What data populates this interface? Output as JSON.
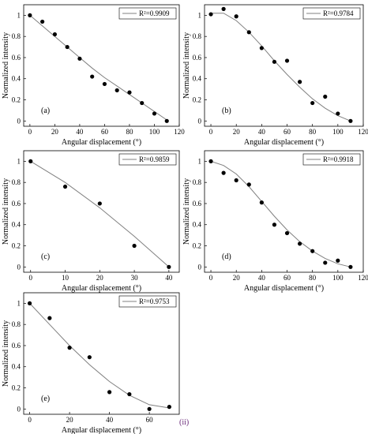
{
  "figure_note": "(ii)",
  "chart_data": [
    {
      "type": "scatter",
      "panel_label": "(a)",
      "xlabel": "Angular displacement (°)",
      "ylabel": "Normalized intensity",
      "xlim": [
        -5,
        120
      ],
      "ylim": [
        -0.05,
        1.1
      ],
      "xticks": [
        0,
        20,
        40,
        60,
        80,
        100,
        120
      ],
      "yticks": [
        0,
        0.2,
        0.4,
        0.6,
        0.8,
        1
      ],
      "legend": "R²=0.9909",
      "legend_position": "top-right",
      "series": [
        {
          "x": [
            0,
            10,
            20,
            30,
            40,
            50,
            60,
            70,
            80,
            90,
            100,
            110
          ],
          "y": [
            1.0,
            0.94,
            0.82,
            0.7,
            0.59,
            0.42,
            0.35,
            0.29,
            0.27,
            0.17,
            0.07,
            0.0
          ]
        }
      ],
      "fit": {
        "x": [
          0,
          10,
          20,
          30,
          40,
          50,
          60,
          70,
          80,
          90,
          100,
          110
        ],
        "y": [
          1.0,
          0.9,
          0.8,
          0.7,
          0.6,
          0.5,
          0.41,
          0.33,
          0.25,
          0.17,
          0.09,
          0.01
        ]
      }
    },
    {
      "type": "scatter",
      "panel_label": "(b)",
      "xlabel": "Angular displacement (°)",
      "ylabel": "Normalized intensity",
      "xlim": [
        -5,
        120
      ],
      "ylim": [
        -0.05,
        1.1
      ],
      "xticks": [
        0,
        20,
        40,
        60,
        80,
        100,
        120
      ],
      "yticks": [
        0,
        0.2,
        0.4,
        0.6,
        0.8,
        1
      ],
      "legend": "R²=0.9784",
      "legend_position": "top-right",
      "series": [
        {
          "x": [
            0,
            10,
            20,
            30,
            40,
            50,
            60,
            70,
            80,
            90,
            100,
            110
          ],
          "y": [
            1.01,
            1.06,
            0.99,
            0.84,
            0.69,
            0.56,
            0.57,
            0.37,
            0.17,
            0.23,
            0.07,
            0.0
          ]
        }
      ],
      "fit": {
        "x": [
          0,
          10,
          20,
          30,
          40,
          50,
          60,
          70,
          80,
          90,
          100,
          110
        ],
        "y": [
          1.02,
          1.02,
          0.95,
          0.84,
          0.71,
          0.57,
          0.44,
          0.32,
          0.21,
          0.12,
          0.05,
          0.0
        ]
      }
    },
    {
      "type": "scatter",
      "panel_label": "(c)",
      "xlabel": "Angular displacement (°)",
      "ylabel": "Normalized intensity",
      "xlim": [
        -2,
        43
      ],
      "ylim": [
        -0.05,
        1.1
      ],
      "xticks": [
        0,
        10,
        20,
        30,
        40
      ],
      "yticks": [
        0,
        0.2,
        0.4,
        0.6,
        0.8,
        1
      ],
      "legend": "R²=0.9859",
      "legend_position": "top-right",
      "series": [
        {
          "x": [
            0,
            10,
            20,
            30,
            40
          ],
          "y": [
            1.0,
            0.76,
            0.6,
            0.2,
            0.0
          ]
        }
      ],
      "fit": {
        "x": [
          0,
          10,
          20,
          30,
          40
        ],
        "y": [
          1.0,
          0.8,
          0.56,
          0.29,
          0.0
        ]
      }
    },
    {
      "type": "scatter",
      "panel_label": "(d)",
      "xlabel": "Angular displacement (°)",
      "ylabel": "Normalized intensity",
      "xlim": [
        -5,
        120
      ],
      "ylim": [
        -0.05,
        1.1
      ],
      "xticks": [
        0,
        20,
        40,
        60,
        80,
        100,
        120
      ],
      "yticks": [
        0,
        0.2,
        0.4,
        0.6,
        0.8,
        1
      ],
      "legend": "R²=0.9918",
      "legend_position": "top-right",
      "series": [
        {
          "x": [
            0,
            10,
            20,
            30,
            40,
            50,
            60,
            70,
            80,
            90,
            100,
            110
          ],
          "y": [
            1.0,
            0.89,
            0.82,
            0.78,
            0.61,
            0.4,
            0.32,
            0.22,
            0.15,
            0.04,
            0.06,
            0.0
          ]
        }
      ],
      "fit": {
        "x": [
          0,
          10,
          20,
          30,
          40,
          50,
          60,
          70,
          80,
          90,
          100,
          110
        ],
        "y": [
          1.0,
          0.96,
          0.88,
          0.76,
          0.62,
          0.48,
          0.35,
          0.24,
          0.15,
          0.08,
          0.03,
          0.0
        ]
      }
    },
    {
      "type": "scatter",
      "panel_label": "(e)",
      "xlabel": "Angular displacement (°)",
      "ylabel": "Normalized intensity",
      "xlim": [
        -3,
        75
      ],
      "ylim": [
        -0.05,
        1.1
      ],
      "xticks": [
        0,
        20,
        40,
        60
      ],
      "yticks": [
        0,
        0.2,
        0.4,
        0.6,
        0.8,
        1
      ],
      "legend": "R²=0.9753",
      "legend_position": "top-right",
      "series": [
        {
          "x": [
            0,
            10,
            20,
            30,
            40,
            50,
            60,
            70
          ],
          "y": [
            1.0,
            0.86,
            0.58,
            0.49,
            0.16,
            0.14,
            0.0,
            0.02
          ]
        }
      ],
      "fit": {
        "x": [
          0,
          10,
          20,
          30,
          40,
          50,
          60,
          70
        ],
        "y": [
          1.0,
          0.8,
          0.6,
          0.42,
          0.26,
          0.13,
          0.04,
          0.01
        ]
      }
    }
  ]
}
